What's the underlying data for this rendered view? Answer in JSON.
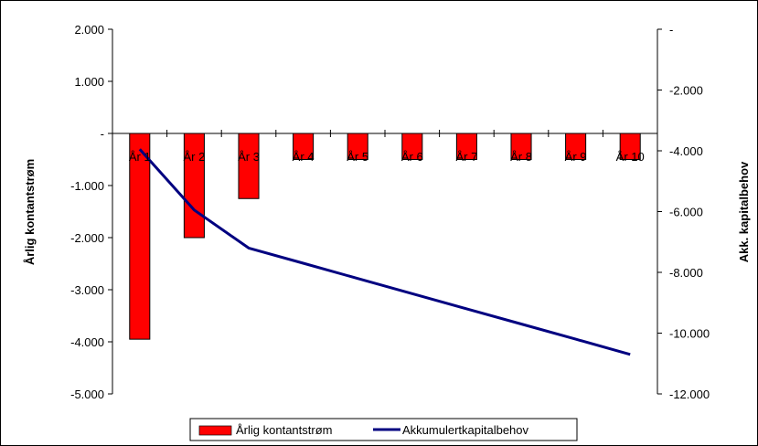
{
  "chart_data": {
    "type": "bar",
    "categories": [
      "År 1",
      "År 2",
      "År 3",
      "År 4",
      "År 5",
      "År 6",
      "År 7",
      "År 8",
      "År 9",
      "År 10"
    ],
    "series": [
      {
        "name": "Årlig kontantstrøm",
        "type": "bar",
        "axis": "left",
        "color": "#ff0000",
        "values": [
          -3950,
          -2000,
          -1250,
          -500,
          -500,
          -500,
          -500,
          -500,
          -500,
          -500
        ]
      },
      {
        "name": "Akkumulertkapitalbehov",
        "type": "line",
        "axis": "right",
        "color": "#000080",
        "values": [
          -3950,
          -5950,
          -7200,
          -7700,
          -8200,
          -8700,
          -9200,
          -9700,
          -10200,
          -10700
        ]
      }
    ],
    "ylabel": "Årlig kontantstrøm",
    "y2label": "Akk. kapitalbehov",
    "ylim": [
      -5000,
      2000
    ],
    "y2lim": [
      -12000,
      0
    ],
    "yticks": [
      {
        "value": 2000,
        "label": "2.000"
      },
      {
        "value": 1000,
        "label": "1.000"
      },
      {
        "value": 0,
        "label": "-"
      },
      {
        "value": -1000,
        "label": "-1.000"
      },
      {
        "value": -2000,
        "label": "-2.000"
      },
      {
        "value": -3000,
        "label": "-3.000"
      },
      {
        "value": -4000,
        "label": "-4.000"
      },
      {
        "value": -5000,
        "label": "-5.000"
      }
    ],
    "y2ticks": [
      {
        "value": 0,
        "label": "-"
      },
      {
        "value": -2000,
        "label": "-2.000"
      },
      {
        "value": -4000,
        "label": "-4.000"
      },
      {
        "value": -6000,
        "label": "-6.000"
      },
      {
        "value": -8000,
        "label": "-8.000"
      },
      {
        "value": -10000,
        "label": "-10.000"
      },
      {
        "value": -12000,
        "label": "-12.000"
      }
    ],
    "grid": false,
    "legend": "bottom"
  }
}
